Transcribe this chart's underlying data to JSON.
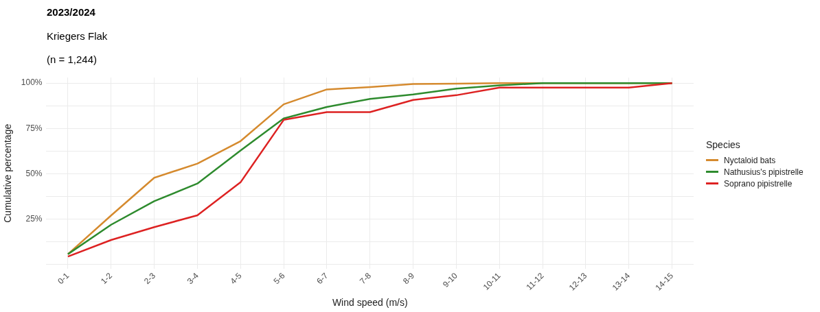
{
  "chart_data": {
    "type": "line",
    "title": "2023/2024",
    "subtitle": "Kriegers Flak",
    "annotations": [
      "(n = 1,244)"
    ],
    "xlabel": "Wind speed (m/s)",
    "ylabel": "Cumulative percentage",
    "legend_title": "Species",
    "legend": "right",
    "categories": [
      "0-1",
      "1-2",
      "2-3",
      "3-4",
      "4-5",
      "5-6",
      "6-7",
      "7-8",
      "8-9",
      "9-10",
      "10-11",
      "11-12",
      "12-13",
      "13-14",
      "14-15"
    ],
    "series": [
      {
        "name": "Nyctaloid bats",
        "color": "#d58a2e",
        "values": [
          5.7,
          27,
          47.8,
          55.6,
          68,
          88.3,
          96.5,
          97.8,
          99.5,
          99.7,
          100,
          100,
          100,
          100,
          100
        ]
      },
      {
        "name": "Nathusius's pipistrelle",
        "color": "#2e8b2e",
        "values": [
          5.7,
          21.9,
          34.9,
          44.6,
          62.8,
          80.5,
          86.8,
          91.3,
          93.7,
          96.9,
          98.7,
          100,
          100,
          100,
          100
        ]
      },
      {
        "name": "Soprano pipistrelle",
        "color": "#dd2222",
        "values": [
          4.4,
          13.5,
          20.6,
          27.1,
          45.3,
          79.7,
          84,
          84,
          90.7,
          93.3,
          97.5,
          97.5,
          97.5,
          97.5,
          100
        ]
      }
    ],
    "ylim": [
      -2.5,
      103
    ],
    "yticks": [
      {
        "value": 0,
        "label": null
      },
      {
        "value": 12.5,
        "label": null
      },
      {
        "value": 25,
        "label": "25%"
      },
      {
        "value": 37.5,
        "label": null
      },
      {
        "value": 50,
        "label": "50%"
      },
      {
        "value": 62.5,
        "label": null
      },
      {
        "value": 75,
        "label": "75%"
      },
      {
        "value": 87.5,
        "label": null
      },
      {
        "value": 100,
        "label": "100%"
      }
    ],
    "grid": true,
    "marker": "none",
    "line_style": "solid"
  }
}
